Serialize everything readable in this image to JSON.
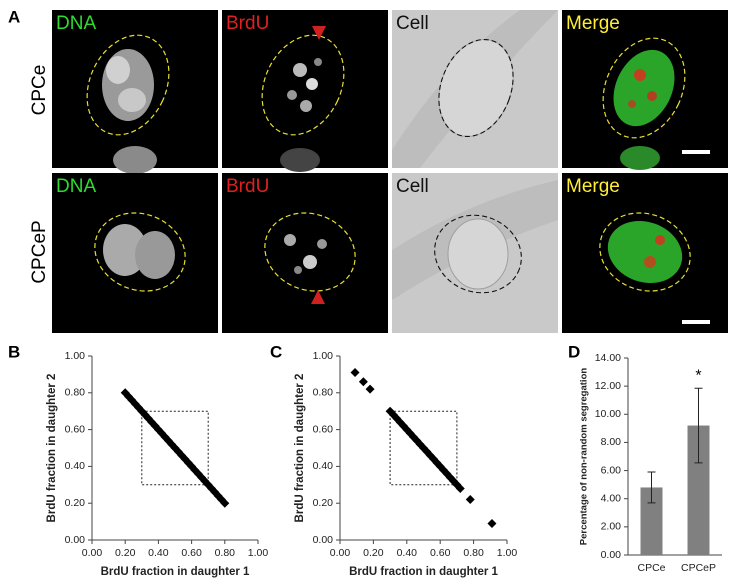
{
  "figure_a": {
    "panel_label": "A",
    "rows": [
      {
        "label": "CPCe",
        "channels": [
          "DNA",
          "BrdU",
          "Cell",
          "Merge"
        ]
      },
      {
        "label": "CPCeP",
        "channels": [
          "DNA",
          "BrdU",
          "Cell",
          "Merge"
        ]
      }
    ]
  },
  "chart_data": [
    {
      "type": "scatter",
      "panel_label": "B",
      "xlabel": "BrdU fraction in daughter 1",
      "ylabel": "BrdU fraction in daughter 2",
      "color": "#000000",
      "x": [
        0.2,
        0.22,
        0.24,
        0.26,
        0.28,
        0.3,
        0.32,
        0.34,
        0.36,
        0.38,
        0.4,
        0.42,
        0.44,
        0.46,
        0.48,
        0.5,
        0.52,
        0.54,
        0.56,
        0.58,
        0.6,
        0.62,
        0.64,
        0.66,
        0.68,
        0.7,
        0.72,
        0.74,
        0.76,
        0.78,
        0.8
      ],
      "y": [
        0.8,
        0.78,
        0.76,
        0.74,
        0.72,
        0.7,
        0.68,
        0.66,
        0.64,
        0.62,
        0.6,
        0.58,
        0.56,
        0.54,
        0.52,
        0.5,
        0.48,
        0.46,
        0.44,
        0.42,
        0.4,
        0.38,
        0.36,
        0.34,
        0.32,
        0.3,
        0.28,
        0.26,
        0.24,
        0.22,
        0.2
      ],
      "highlight_box": {
        "x": [
          0.3,
          0.7
        ],
        "y": [
          0.3,
          0.7
        ]
      },
      "xlim": [
        0,
        1
      ],
      "ylim": [
        0,
        1
      ],
      "xticks": [
        {
          "value": 0,
          "label": "0.00"
        },
        {
          "value": 0.2,
          "label": "0.20"
        },
        {
          "value": 0.4,
          "label": "0.40"
        },
        {
          "value": 0.6,
          "label": "0.60"
        },
        {
          "value": 0.8,
          "label": "0.80"
        },
        {
          "value": 1,
          "label": "1.00"
        }
      ],
      "yticks": [
        {
          "value": 0,
          "label": "0.00"
        },
        {
          "value": 0.2,
          "label": "0.20"
        },
        {
          "value": 0.4,
          "label": "0.40"
        },
        {
          "value": 0.6,
          "label": "0.60"
        },
        {
          "value": 0.8,
          "label": "0.80"
        },
        {
          "value": 1,
          "label": "1.00"
        }
      ]
    },
    {
      "type": "scatter",
      "panel_label": "C",
      "xlabel": "BrdU fraction in daughter 1",
      "ylabel": "BrdU fraction in daughter 2",
      "color": "#000000",
      "x": [
        0.09,
        0.14,
        0.18,
        0.3,
        0.32,
        0.34,
        0.36,
        0.38,
        0.4,
        0.42,
        0.44,
        0.46,
        0.48,
        0.5,
        0.52,
        0.54,
        0.56,
        0.58,
        0.6,
        0.62,
        0.64,
        0.66,
        0.68,
        0.7,
        0.72,
        0.78,
        0.91
      ],
      "y": [
        0.91,
        0.86,
        0.82,
        0.7,
        0.68,
        0.66,
        0.64,
        0.62,
        0.6,
        0.58,
        0.56,
        0.54,
        0.52,
        0.5,
        0.48,
        0.46,
        0.44,
        0.42,
        0.4,
        0.38,
        0.36,
        0.34,
        0.32,
        0.3,
        0.28,
        0.22,
        0.09
      ],
      "highlight_box": {
        "x": [
          0.3,
          0.7
        ],
        "y": [
          0.3,
          0.7
        ]
      },
      "xlim": [
        0,
        1
      ],
      "ylim": [
        0,
        1
      ],
      "xticks": [
        {
          "value": 0,
          "label": "0.00"
        },
        {
          "value": 0.2,
          "label": "0.20"
        },
        {
          "value": 0.4,
          "label": "0.40"
        },
        {
          "value": 0.6,
          "label": "0.60"
        },
        {
          "value": 0.8,
          "label": "0.80"
        },
        {
          "value": 1,
          "label": "1.00"
        }
      ],
      "yticks": [
        {
          "value": 0,
          "label": "0.00"
        },
        {
          "value": 0.2,
          "label": "0.20"
        },
        {
          "value": 0.4,
          "label": "0.40"
        },
        {
          "value": 0.6,
          "label": "0.60"
        },
        {
          "value": 0.8,
          "label": "0.80"
        },
        {
          "value": 1,
          "label": "1.00"
        }
      ]
    },
    {
      "type": "bar",
      "panel_label": "D",
      "ylabel": "Percentage of non-random segregation",
      "categories": [
        "CPCe",
        "CPCeP"
      ],
      "values": [
        4.8,
        9.2
      ],
      "errors": [
        1.1,
        2.65
      ],
      "color": "#808080",
      "annotations": [
        {
          "text": "*",
          "x": "CPCeP"
        }
      ],
      "ylim": [
        0,
        14
      ],
      "yticks": [
        {
          "value": 0,
          "label": "0.00"
        },
        {
          "value": 2,
          "label": "2.00"
        },
        {
          "value": 4,
          "label": "4.00"
        },
        {
          "value": 6,
          "label": "6.00"
        },
        {
          "value": 8,
          "label": "8.00"
        },
        {
          "value": 10,
          "label": "10.00"
        },
        {
          "value": 12,
          "label": "12.00"
        },
        {
          "value": 14,
          "label": "14.00"
        }
      ]
    }
  ]
}
